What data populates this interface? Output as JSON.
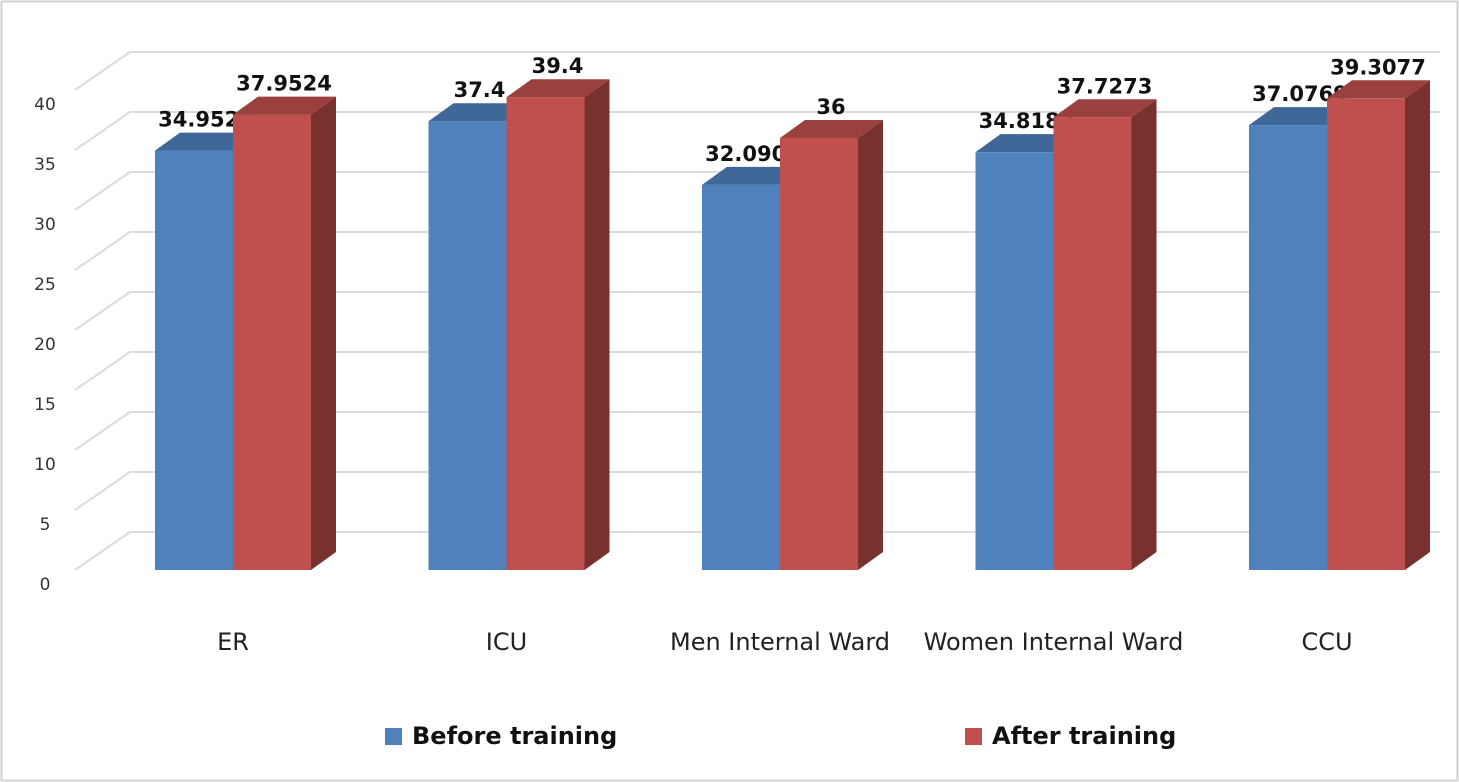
{
  "chart_data": {
    "type": "bar3d",
    "categories": [
      "ER",
      "ICU",
      "Men Internal Ward",
      "Women Internal Ward",
      "CCU"
    ],
    "series": [
      {
        "name": "Before training",
        "color": "#4f81bd",
        "values": [
          34.9524,
          37.4,
          32.0909,
          34.8182,
          37.0769
        ]
      },
      {
        "name": "After training",
        "color": "#c0504d",
        "values": [
          37.9524,
          39.4,
          36,
          37.7273,
          39.3077
        ]
      }
    ],
    "ylim": [
      0,
      40
    ],
    "yticks": [
      0,
      5,
      10,
      15,
      20,
      25,
      30,
      35,
      40
    ],
    "grid": true,
    "legend": "bottom"
  }
}
